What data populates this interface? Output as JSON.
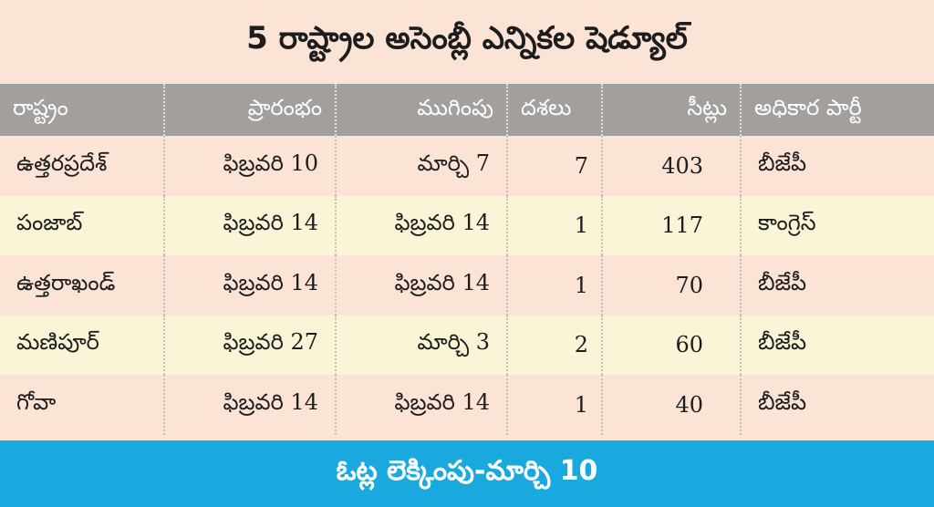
{
  "title": "5 రాష్ట్రాల అసెంబ్లీ ఎన్నికల షెడ్యూల్",
  "table": {
    "headers": [
      "రాష్ట్రం",
      "ప్రారంభం",
      "ముగింపు",
      "దశలు",
      "సీట్లు",
      "అధికార పార్టీ"
    ],
    "rows": [
      {
        "state": "ఉత్తరప్రదేశ్",
        "start": "ఫిబ్రవరి 10",
        "end": "మార్చి 7",
        "phases": "7",
        "seats": "403",
        "party": "బీజేపీ"
      },
      {
        "state": "పంజాబ్",
        "start": "ఫిబ్రవరి 14",
        "end": "ఫిబ్రవరి 14",
        "phases": "1",
        "seats": "117",
        "party": "కాంగ్రెస్"
      },
      {
        "state": "ఉత్తరాఖండ్",
        "start": "ఫిబ్రవరి 14",
        "end": "ఫిబ్రవరి 14",
        "phases": "1",
        "seats": "70",
        "party": "బీజేపీ"
      },
      {
        "state": "మణిపూర్",
        "start": "ఫిబ్రవరి 27",
        "end": "మార్చి 3",
        "phases": "2",
        "seats": "60",
        "party": "బీజేపీ"
      },
      {
        "state": "గోవా",
        "start": "ఫిబ్రవరి 14",
        "end": "ఫిబ్రవరి 14",
        "phases": "1",
        "seats": "40",
        "party": "బీజేపీ"
      }
    ]
  },
  "footer": "ఓట్ల లెక్కింపు-మార్చి 10",
  "colors": {
    "header_bg": "#a39f9d",
    "row_odd": "#fbe3d6",
    "row_even": "#fbf5d7",
    "footer_bg": "#19a9df"
  }
}
